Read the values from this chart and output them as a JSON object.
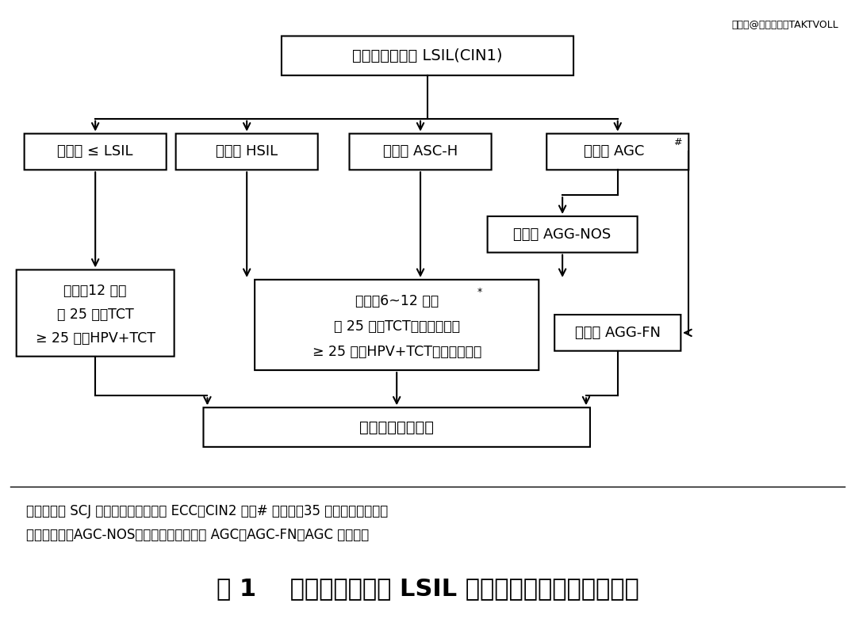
{
  "bg_color": "#ffffff",
  "watermark": "搜狐号@北京索吉瑞TAKTVOLL",
  "top_text": "组织病理学诊断 LSIL(CIN1)",
  "lsil_text": "细胞学 ≤ LSIL",
  "hsil_text": "细胞学 HSIL",
  "asch_text": "细胞学 ASC-H",
  "agc_text": "细胞学 AGC",
  "aggnos_text": "细胞学 AGG-NOS",
  "followup1_line1": "随访：12 个月",
  "followup1_line2": "＜ 25 岁：TCT",
  "followup1_line3": "≥ 25 岁：HPV+TCT",
  "followup2_line1": "随访：6~12 个月",
  "followup2_line2": "＜ 25 岁：TCT，阴道镜检查",
  "followup2_line3": "≥ 25 岁：HPV+TCT，阴道镜检查",
  "aggfn_text": "细胞学 AGG-FN",
  "cone_text": "诊断性宫颈锥切术",
  "footnote_line1": "＊仅适用于 SCJ 和病变范围可见，且 ECC＜CIN2 者；# 当年龄＞35 岁，需行子宫内膜",
  "footnote_line2": "诊断性刮宫；AGC-NOS：未明确诊断意义的 AGC；AGC-FN：AGC 倾向瘤变",
  "caption_part1": "图 1",
  "caption_part2": "根据组织病理学 LSIL 前细胞学风险分层管理流程"
}
